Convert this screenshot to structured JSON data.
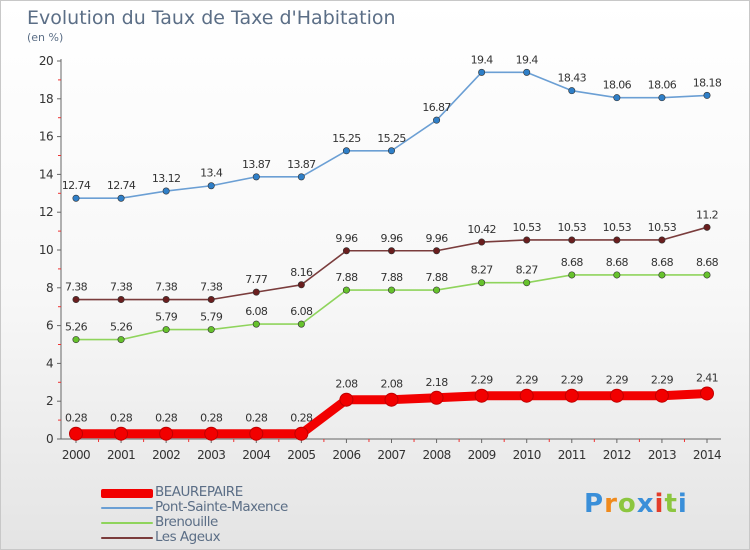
{
  "title": "Evolution du Taux de Taxe d'Habitation",
  "subtitle": "(en %)",
  "logo": {
    "text": "Proxiti",
    "letters": [
      "P",
      "r",
      "o",
      "x",
      "i",
      "t",
      "i"
    ],
    "colors": [
      "#3a8fd9",
      "#f08a1c",
      "#8cc63f",
      "#3a8fd9",
      "#e33c2a",
      "#8cc63f",
      "#3a8fd9"
    ]
  },
  "chart_data": {
    "type": "line",
    "title": "Evolution du Taux de Taxe d'Habitation",
    "ylabel": "(en %)",
    "xlabel": "",
    "ylim": [
      0,
      20
    ],
    "y_ticks": [
      0,
      2,
      4,
      6,
      8,
      10,
      12,
      14,
      16,
      18,
      20
    ],
    "grid": false,
    "legend_position": "bottom-left",
    "x": [
      "2000",
      "2001",
      "2002",
      "2003",
      "2004",
      "2005",
      "2006",
      "2007",
      "2008",
      "2009",
      "2010",
      "2011",
      "2012",
      "2013",
      "2014"
    ],
    "series": [
      {
        "name": "BEAUREPAIRE",
        "color": "#f20000",
        "marker": "#f20000",
        "values": [
          0.28,
          0.28,
          0.28,
          0.28,
          0.28,
          0.28,
          2.08,
          2.08,
          2.18,
          2.29,
          2.29,
          2.29,
          2.29,
          2.29,
          2.41
        ],
        "labels": [
          "0.28",
          "0.28",
          "0.28",
          "0.28",
          "0.28",
          "0.28",
          "2.08",
          "2.08",
          "2.18",
          "2.29",
          "2.29",
          "2.29",
          "2.29",
          "2.29",
          "2.41"
        ]
      },
      {
        "name": "Pont-Sainte-Maxence",
        "color": "#6b9fd4",
        "marker": "#2f7fc8",
        "values": [
          12.74,
          12.74,
          13.12,
          13.4,
          13.87,
          13.87,
          15.25,
          15.25,
          16.87,
          19.4,
          19.4,
          18.43,
          18.06,
          18.06,
          18.18
        ],
        "labels": [
          "12.74",
          "12.74",
          "13.12",
          "13.4",
          "13.87",
          "13.87",
          "15.25",
          "15.25",
          "16.87",
          "19.4",
          "19.4",
          "18.43",
          "18.06",
          "18.06",
          "18.18"
        ]
      },
      {
        "name": "Brenouille",
        "color": "#8fd45c",
        "marker": "#66c22c",
        "values": [
          5.26,
          5.26,
          5.79,
          5.79,
          6.08,
          6.08,
          7.88,
          7.88,
          7.88,
          8.27,
          8.27,
          8.68,
          8.68,
          8.68,
          8.68
        ],
        "labels": [
          "5.26",
          "5.26",
          "5.79",
          "5.79",
          "6.08",
          "6.08",
          "7.88",
          "7.88",
          "7.88",
          "8.27",
          "8.27",
          "8.68",
          "8.68",
          "8.68",
          "8.68"
        ]
      },
      {
        "name": "Les Ageux",
        "color": "#7a3c3c",
        "marker": "#6a1e1e",
        "values": [
          7.38,
          7.38,
          7.38,
          7.38,
          7.77,
          8.16,
          9.96,
          9.96,
          9.96,
          10.42,
          10.53,
          10.53,
          10.53,
          10.53,
          11.2
        ],
        "labels": [
          "7.38",
          "7.38",
          "7.38",
          "7.38",
          "7.77",
          "8.16",
          "9.96",
          "9.96",
          "9.96",
          "10.42",
          "10.53",
          "10.53",
          "10.53",
          "10.53",
          "11.2"
        ]
      }
    ]
  }
}
